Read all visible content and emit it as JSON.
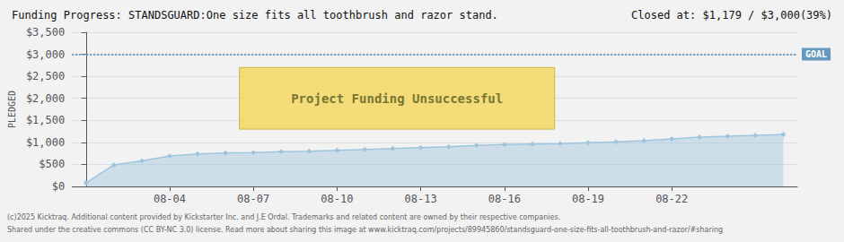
{
  "chart_data": {
    "type": "line",
    "title": "Funding Progress: STANDSGUARD:One size fits all toothbrush and razor stand.",
    "subtitle": "Closed at: $1,179 / $3,000(39%)",
    "ylabel": "PLEDGED",
    "x": [
      0,
      1,
      2,
      3,
      4,
      5,
      6,
      7,
      8,
      9,
      10,
      11,
      12,
      13,
      14,
      15,
      16,
      17,
      18,
      19,
      20,
      21,
      22,
      23,
      24,
      25
    ],
    "values": [
      80,
      490,
      580,
      690,
      740,
      760,
      770,
      790,
      800,
      820,
      840,
      860,
      880,
      900,
      930,
      950,
      960,
      970,
      990,
      1010,
      1040,
      1080,
      1120,
      1140,
      1160,
      1179
    ],
    "color": "#9fc5dd",
    "marker": "diamond",
    "xlim": [
      -0.5,
      25.5
    ],
    "xticks": [
      {
        "value": 3,
        "label": "08-04"
      },
      {
        "value": 6,
        "label": "08-07"
      },
      {
        "value": 9,
        "label": "08-10"
      },
      {
        "value": 12,
        "label": "08-13"
      },
      {
        "value": 15,
        "label": "08-16"
      },
      {
        "value": 18,
        "label": "08-19"
      },
      {
        "value": 21,
        "label": "08-22"
      }
    ],
    "ylim": [
      0,
      3500
    ],
    "yticks": [
      {
        "value": 0,
        "label": "$0"
      },
      {
        "value": 500,
        "label": "$500"
      },
      {
        "value": 1000,
        "label": "$1,000"
      },
      {
        "value": 1500,
        "label": "$1,500"
      },
      {
        "value": 2000,
        "label": "$2,000"
      },
      {
        "value": 2500,
        "label": "$2,500"
      },
      {
        "value": 3000,
        "label": "$3,000"
      },
      {
        "value": 3500,
        "label": "$3,500"
      }
    ],
    "grid": true,
    "annotations": [
      {
        "text": "GOAL",
        "y": 3000,
        "color": "#6699bb",
        "line_style": "dotted"
      },
      {
        "text": "Project Funding Unsuccessful",
        "x": [
          5.5,
          16.8
        ],
        "y": [
          1300,
          2700
        ],
        "color": "#f5d96b"
      }
    ],
    "footnotes": [
      "(c)2025 Kicktraq. Additional content provided by Kickstarter Inc. and J.E Ordal. Trademarks and related content are owned by their respective companies.",
      "Shared under the creative commons (CC BY-NC 3.0) license. Read more about sharing this image at www.kicktraq.com/projects/89945860/standsguard-one-size-fits-all-toothbrush-and-razor/#sharing"
    ]
  }
}
